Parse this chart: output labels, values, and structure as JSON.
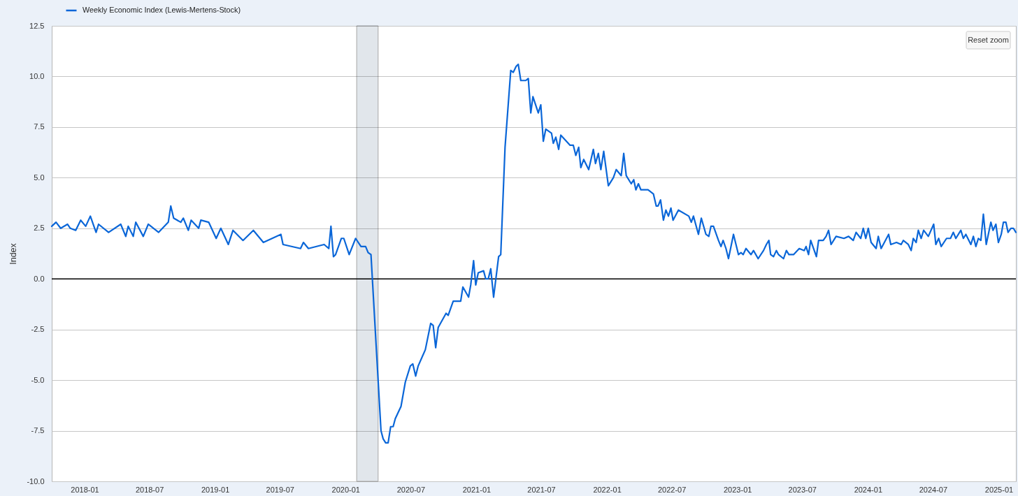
{
  "chart_data": {
    "type": "line",
    "ylabel": "Index",
    "legend": "top left",
    "grid": "y",
    "xlim": [
      "2017-10-01",
      "2025-02-18"
    ],
    "xticks": [
      "2018-01",
      "2018-07",
      "2019-01",
      "2019-07",
      "2020-01",
      "2020-07",
      "2021-01",
      "2021-07",
      "2022-01",
      "2022-07",
      "2023-01",
      "2023-07",
      "2024-01",
      "2024-07",
      "2025-01"
    ],
    "ylim": [
      -10,
      12.5
    ],
    "yticks": [
      {
        "value": -10,
        "label": "-10.0"
      },
      -7.5,
      {
        "value": -5,
        "label": "-5.0"
      },
      -2.5,
      {
        "value": 0,
        "label": "0.0"
      },
      2.5,
      {
        "value": 5,
        "label": "5.0"
      },
      7.5,
      {
        "value": 10,
        "label": "10.0"
      },
      12.5
    ],
    "ref_lines": [
      {
        "axis": "y",
        "value": 0,
        "color": "#000000"
      }
    ],
    "bands": [
      {
        "axis": "x",
        "from": "2020-02-01",
        "to": "2020-04-01",
        "color": "#e1e6eb"
      }
    ],
    "annotations": [
      "Reset zoom"
    ],
    "x": [
      "2017-10-01",
      "2017-10-13",
      "2017-10-26",
      "2017-11-14",
      "2017-11-22",
      "2017-12-07",
      "2017-12-21",
      "2018-01-04",
      "2018-01-17",
      "2018-02-02",
      "2018-02-09",
      "2018-03-09",
      "2018-04-12",
      "2018-04-26",
      "2018-05-03",
      "2018-05-17",
      "2018-05-24",
      "2018-06-14",
      "2018-06-28",
      "2018-07-27",
      "2018-08-23",
      "2018-08-30",
      "2018-09-07",
      "2018-09-27",
      "2018-10-04",
      "2018-10-18",
      "2018-10-26",
      "2018-11-16",
      "2018-11-22",
      "2018-12-14",
      "2019-01-04",
      "2019-01-17",
      "2019-02-07",
      "2019-02-20",
      "2019-03-20",
      "2019-04-18",
      "2019-05-16",
      "2019-07-04",
      "2019-07-10",
      "2019-08-28",
      "2019-09-05",
      "2019-09-19",
      "2019-11-02",
      "2019-11-15",
      "2019-11-21",
      "2019-11-28",
      "2019-12-04",
      "2019-12-20",
      "2019-12-27",
      "2020-01-11",
      "2020-01-29",
      "2020-02-13",
      "2020-02-26",
      "2020-03-04",
      "2020-03-12",
      "2020-04-09",
      "2020-04-15",
      "2020-04-22",
      "2020-04-29",
      "2020-05-06",
      "2020-05-13",
      "2020-05-19",
      "2020-06-04",
      "2020-06-16",
      "2020-06-30",
      "2020-07-07",
      "2020-07-15",
      "2020-07-22",
      "2020-08-11",
      "2020-08-26",
      "2020-09-02",
      "2020-09-09",
      "2020-09-16",
      "2020-10-08",
      "2020-10-14",
      "2020-10-28",
      "2020-11-18",
      "2020-11-24",
      "2020-12-10",
      "2020-12-16",
      "2020-12-24",
      "2020-12-30",
      "2021-01-06",
      "2021-01-21",
      "2021-01-27",
      "2021-02-03",
      "2021-02-10",
      "2021-02-18",
      "2021-03-04",
      "2021-03-10",
      "2021-03-22",
      "2021-04-07",
      "2021-04-14",
      "2021-04-22",
      "2021-04-28",
      "2021-05-05",
      "2021-05-19",
      "2021-05-26",
      "2021-06-02",
      "2021-06-08",
      "2021-06-23",
      "2021-06-30",
      "2021-07-07",
      "2021-07-14",
      "2021-07-30",
      "2021-08-04",
      "2021-08-11",
      "2021-08-19",
      "2021-08-25",
      "2021-09-20",
      "2021-09-29",
      "2021-10-06",
      "2021-10-14",
      "2021-10-20",
      "2021-10-28",
      "2021-11-11",
      "2021-11-24",
      "2021-11-30",
      "2021-12-08",
      "2021-12-15",
      "2021-12-23",
      "2022-01-05",
      "2022-01-19",
      "2022-01-27",
      "2022-02-10",
      "2022-02-17",
      "2022-02-24",
      "2022-03-10",
      "2022-03-17",
      "2022-03-23",
      "2022-03-30",
      "2022-04-06",
      "2022-04-26",
      "2022-05-11",
      "2022-05-19",
      "2022-05-24",
      "2022-05-31",
      "2022-06-08",
      "2022-06-15",
      "2022-06-22",
      "2022-06-29",
      "2022-07-05",
      "2022-07-20",
      "2022-08-18",
      "2022-08-25",
      "2022-08-31",
      "2022-09-14",
      "2022-09-22",
      "2022-10-05",
      "2022-10-13",
      "2022-10-19",
      "2022-10-26",
      "2022-11-09",
      "2022-11-16",
      "2022-11-22",
      "2022-11-30",
      "2022-12-07",
      "2022-12-21",
      "2023-01-04",
      "2023-01-11",
      "2023-01-17",
      "2023-01-25",
      "2023-02-08",
      "2023-02-15",
      "2023-02-28",
      "2023-03-15",
      "2023-03-23",
      "2023-03-30",
      "2023-04-04",
      "2023-04-12",
      "2023-04-20",
      "2023-04-26",
      "2023-05-10",
      "2023-05-18",
      "2023-05-25",
      "2023-06-07",
      "2023-06-23",
      "2023-07-07",
      "2023-07-12",
      "2023-07-19",
      "2023-07-25",
      "2023-08-10",
      "2023-08-16",
      "2023-08-29",
      "2023-09-06",
      "2023-09-13",
      "2023-09-20",
      "2023-10-04",
      "2023-10-26",
      "2023-11-08",
      "2023-11-21",
      "2023-11-29",
      "2023-12-12",
      "2023-12-19",
      "2023-12-26",
      "2024-01-02",
      "2024-01-10",
      "2024-01-24",
      "2024-01-30",
      "2024-02-07",
      "2024-02-28",
      "2024-03-05",
      "2024-03-21",
      "2024-04-03",
      "2024-04-09",
      "2024-04-23",
      "2024-05-01",
      "2024-05-07",
      "2024-05-15",
      "2024-05-21",
      "2024-05-29",
      "2024-06-05",
      "2024-06-18",
      "2024-07-03",
      "2024-07-09",
      "2024-07-17",
      "2024-07-24",
      "2024-08-08",
      "2024-08-19",
      "2024-08-27",
      "2024-09-03",
      "2024-09-17",
      "2024-09-24",
      "2024-10-01",
      "2024-10-15",
      "2024-10-22",
      "2024-10-29",
      "2024-11-05",
      "2024-11-12",
      "2024-11-19",
      "2024-11-27",
      "2024-12-10",
      "2024-12-16",
      "2024-12-24",
      "2024-12-31",
      "2025-01-08",
      "2025-01-14",
      "2025-01-21",
      "2025-01-27",
      "2025-02-04",
      "2025-02-11",
      "2025-02-18"
    ],
    "series": [
      {
        "name": "Weekly Economic Index (Lewis-Mertens-Stock)",
        "color": "#0a66d8",
        "values": [
          2.6,
          2.8,
          2.5,
          2.7,
          2.5,
          2.4,
          2.9,
          2.6,
          3.1,
          2.3,
          2.7,
          2.3,
          2.7,
          2.1,
          2.6,
          2.1,
          2.8,
          2.1,
          2.7,
          2.3,
          2.8,
          3.6,
          3.0,
          2.8,
          3.0,
          2.4,
          2.9,
          2.5,
          2.9,
          2.8,
          2.0,
          2.5,
          1.7,
          2.4,
          1.9,
          2.4,
          1.8,
          2.2,
          1.7,
          1.5,
          1.8,
          1.5,
          1.7,
          1.5,
          2.6,
          1.1,
          1.2,
          2.0,
          2.0,
          1.2,
          2.0,
          1.6,
          1.6,
          1.3,
          1.2,
          -7.5,
          -7.9,
          -8.1,
          -8.1,
          -7.3,
          -7.3,
          -6.9,
          -6.3,
          -5.1,
          -4.3,
          -4.2,
          -4.8,
          -4.3,
          -3.5,
          -2.2,
          -2.3,
          -3.4,
          -2.4,
          -1.7,
          -1.8,
          -1.1,
          -1.1,
          -0.4,
          -0.9,
          -0.3,
          0.9,
          -0.3,
          0.3,
          0.4,
          0.0,
          0.0,
          0.5,
          -0.9,
          1.1,
          1.2,
          6.5,
          10.3,
          10.2,
          10.5,
          10.6,
          9.8,
          9.8,
          9.9,
          8.2,
          9.0,
          8.2,
          8.6,
          6.8,
          7.4,
          7.2,
          6.7,
          7.0,
          6.4,
          7.1,
          6.6,
          6.6,
          6.1,
          6.5,
          5.5,
          5.9,
          5.4,
          6.4,
          5.7,
          6.2,
          5.4,
          6.3,
          4.6,
          5.0,
          5.4,
          5.1,
          6.2,
          5.1,
          4.7,
          4.9,
          4.4,
          4.7,
          4.4,
          4.4,
          4.2,
          3.6,
          3.6,
          3.9,
          2.9,
          3.4,
          3.1,
          3.5,
          2.9,
          3.4,
          3.1,
          2.8,
          3.1,
          2.2,
          3.0,
          2.2,
          2.1,
          2.6,
          2.6,
          1.9,
          1.6,
          1.9,
          1.5,
          1.0,
          2.2,
          1.2,
          1.3,
          1.2,
          1.5,
          1.2,
          1.4,
          1.0,
          1.4,
          1.7,
          1.9,
          1.2,
          1.1,
          1.4,
          1.2,
          1.0,
          1.4,
          1.2,
          1.2,
          1.5,
          1.4,
          1.6,
          1.2,
          1.9,
          1.1,
          1.9,
          1.9,
          2.1,
          2.4,
          1.7,
          2.1,
          2.0,
          2.1,
          1.9,
          2.3,
          2.0,
          2.5,
          2.0,
          2.5,
          1.8,
          1.5,
          2.1,
          1.5,
          2.2,
          1.7,
          1.8,
          1.7,
          1.9,
          1.7,
          1.4,
          2.0,
          1.8,
          2.4,
          2.0,
          2.4,
          2.1,
          2.7,
          1.7,
          2.0,
          1.6,
          2.0,
          2.0,
          2.3,
          2.0,
          2.4,
          2.0,
          2.2,
          1.7,
          2.1,
          1.6,
          2.0,
          1.9,
          3.2,
          1.7,
          2.8,
          2.4,
          2.7,
          1.8,
          2.2,
          2.8,
          2.8,
          2.3,
          2.5,
          2.5,
          2.3
        ]
      }
    ]
  }
}
